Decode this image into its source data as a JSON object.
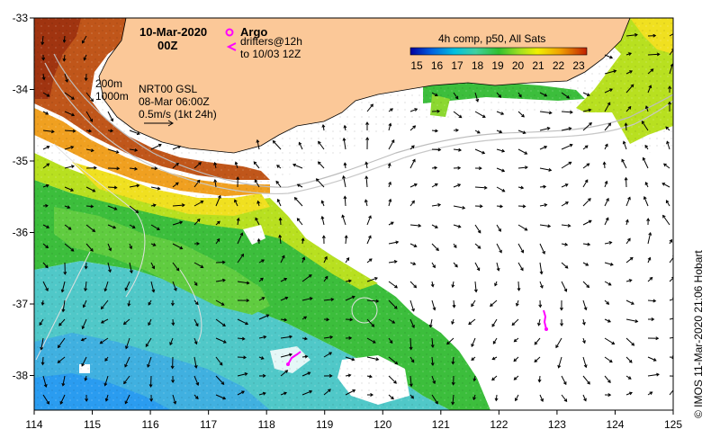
{
  "map": {
    "date_title": "10-Mar-2020",
    "time_title": "00Z",
    "legend_argo": "Argo",
    "legend_drifters_line1": "drifters@12h",
    "legend_drifters_line2": "to 10/03 12Z",
    "contour_200": "200m",
    "contour_1000": "1000m",
    "product_line1": "NRT00 GSL",
    "product_line2": "08-Mar 06:00Z",
    "product_line3": "0.5m/s (1kt 24h)",
    "colorbar_title": "4h comp, p50, All Sats",
    "colorbar_ticks": [
      "15",
      "16",
      "17",
      "18",
      "19",
      "20",
      "21",
      "22",
      "23"
    ],
    "credit": "© IMOS 11-Mar-2020 21:06 Hobart",
    "x_ticks": [
      "114",
      "115",
      "116",
      "117",
      "118",
      "119",
      "120",
      "121",
      "122",
      "123",
      "124",
      "125"
    ],
    "y_ticks": [
      "-33",
      "-34",
      "-35",
      "-36",
      "-37",
      "-38"
    ],
    "colors": {
      "land": "#fbc898",
      "sst_warm": "#c0561a",
      "sst_mid": "#3cbe3c",
      "sst_cool": "#50c8c8",
      "argo": "#ff00ff",
      "drifter": "#ff00ff"
    }
  }
}
